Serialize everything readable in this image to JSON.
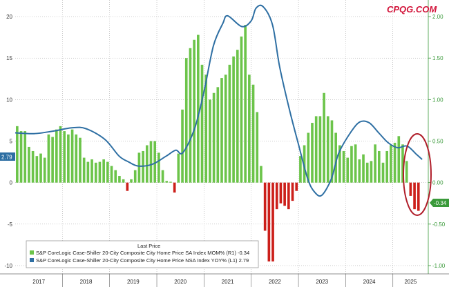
{
  "watermark": "CPQG.COM",
  "colors": {
    "background": "#ffffff",
    "bar_positive": "#6cc44a",
    "bar_negative": "#cc1f1a",
    "line": "#2e6fa3",
    "left_axis": "#333333",
    "right_axis": "#3a9a3a",
    "grid": "#9a9a9a",
    "highlight_circle": "#b01e2a",
    "watermark": "#d2143a"
  },
  "chart_data": {
    "type": "bar",
    "left_axis": {
      "ticks": [
        "20",
        "15",
        "10",
        "5",
        "0",
        "-5",
        "-10"
      ],
      "range": [
        -11,
        22
      ],
      "last_value_label": "2.79"
    },
    "right_axis": {
      "ticks": [
        "2.00",
        "1.50",
        "1.00",
        "0.50",
        "0.00",
        "-0.50",
        "-1.00"
      ],
      "range": [
        -1.1,
        2.2
      ],
      "last_value_label": "-0.34"
    },
    "x_years": [
      "2017",
      "2018",
      "2019",
      "2020",
      "2021",
      "2022",
      "2023",
      "2024",
      "2025"
    ],
    "legend": {
      "header": "Last Price",
      "entries": [
        {
          "text": "S&P CoreLogic Case-Shiller 20-City Composite City Home Price SA Index MOM% (R1) -0.34",
          "color": "#6cc44a"
        },
        {
          "text": "S&P CoreLogic Case-Shiller 20-City Composite City Home Price NSA Index YOY% (L1) 2.79",
          "color": "#2e6fa3"
        }
      ]
    },
    "series": [
      {
        "name": "S&P CoreLogic Case-Shiller 20-City Composite City Home Price SA Index MOM% (R1)",
        "axis": "right",
        "style": "bar",
        "start": "2017-01",
        "values": [
          0.68,
          0.62,
          0.62,
          0.43,
          0.38,
          0.32,
          0.35,
          0.3,
          0.58,
          0.55,
          0.64,
          0.68,
          0.62,
          0.58,
          0.64,
          0.58,
          0.54,
          0.3,
          0.25,
          0.28,
          0.24,
          0.25,
          0.28,
          0.25,
          0.2,
          0.15,
          0.08,
          0.04,
          -0.1,
          0.04,
          0.15,
          0.36,
          0.38,
          0.45,
          0.5,
          0.5,
          0.36,
          0.15,
          0.02,
          0.01,
          -0.12,
          0.35,
          0.88,
          1.5,
          1.62,
          1.72,
          1.78,
          1.42,
          1.3,
          1.0,
          1.08,
          1.15,
          1.26,
          1.3,
          1.42,
          1.52,
          1.6,
          1.76,
          1.9,
          1.3,
          1.18,
          0.85,
          0.2,
          -0.58,
          -0.95,
          -0.95,
          -0.32,
          -0.25,
          -0.28,
          -0.32,
          -0.22,
          -0.1,
          0.32,
          0.45,
          0.6,
          0.72,
          0.8,
          0.8,
          1.08,
          0.8,
          0.75,
          0.6,
          0.45,
          0.38,
          0.3,
          0.44,
          0.46,
          0.28,
          0.34,
          0.24,
          0.26,
          0.46,
          0.38,
          0.24,
          0.38,
          0.45,
          0.48,
          0.56,
          0.46,
          0.26,
          -0.16,
          -0.32,
          -0.34
        ]
      },
      {
        "name": "S&P CoreLogic Case-Shiller 20-City Composite City Home Price NSA Index YOY% (L1)",
        "axis": "left",
        "style": "line",
        "points": [
          [
            2017.0,
            6.0
          ],
          [
            2017.4,
            5.9
          ],
          [
            2017.8,
            6.2
          ],
          [
            2018.2,
            6.6
          ],
          [
            2018.5,
            6.5
          ],
          [
            2018.9,
            5.2
          ],
          [
            2019.2,
            3.2
          ],
          [
            2019.4,
            2.5
          ],
          [
            2019.6,
            2.0
          ],
          [
            2019.9,
            2.2
          ],
          [
            2020.2,
            3.2
          ],
          [
            2020.4,
            3.9
          ],
          [
            2020.55,
            3.6
          ],
          [
            2020.8,
            6.5
          ],
          [
            2021.0,
            11.0
          ],
          [
            2021.2,
            16.5
          ],
          [
            2021.4,
            19.2
          ],
          [
            2021.5,
            20.1
          ],
          [
            2021.8,
            18.8
          ],
          [
            2022.0,
            19.5
          ],
          [
            2022.1,
            21.0
          ],
          [
            2022.25,
            21.2
          ],
          [
            2022.45,
            19.0
          ],
          [
            2022.6,
            14.0
          ],
          [
            2022.8,
            9.0
          ],
          [
            2023.0,
            4.6
          ],
          [
            2023.2,
            0.4
          ],
          [
            2023.35,
            -1.2
          ],
          [
            2023.5,
            -1.5
          ],
          [
            2023.7,
            0.5
          ],
          [
            2023.85,
            3.5
          ],
          [
            2024.1,
            6.0
          ],
          [
            2024.3,
            7.3
          ],
          [
            2024.5,
            7.2
          ],
          [
            2024.7,
            6.0
          ],
          [
            2024.9,
            4.8
          ],
          [
            2025.1,
            4.2
          ],
          [
            2025.3,
            4.4
          ],
          [
            2025.5,
            3.4
          ],
          [
            2025.62,
            2.79
          ]
        ]
      }
    ],
    "xlabel": "",
    "ylabel": "",
    "grid": true,
    "legend_position": "bottom-left",
    "annotation": "circle-highlight-2025"
  }
}
